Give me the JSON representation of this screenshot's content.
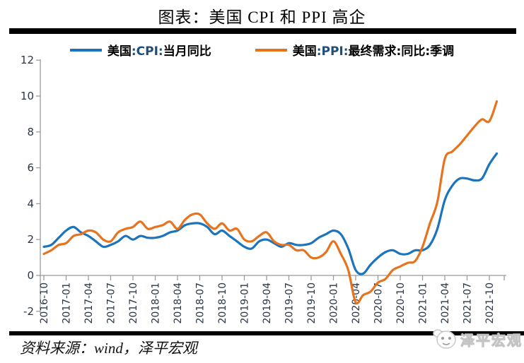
{
  "title": "图表：美国 CPI 和 PPI 高企",
  "legend": {
    "items": [
      {
        "pre": "美国",
        "code": ":CPI:",
        "post": "当月同比"
      },
      {
        "pre": "美国",
        "code": ":PPI:",
        "post": "最终需求:同比:季调"
      }
    ]
  },
  "footer": {
    "source": "资料来源：wind，泽平宏观",
    "watermark": "泽平宏观"
  },
  "chart_data": {
    "type": "line",
    "title": "图表：美国 CPI 和 PPI 高企",
    "x_start": "2016-10",
    "x_end": "2021-11",
    "months_per_tick": 3,
    "x_labels": [
      "2016-10",
      "2017-01",
      "2017-04",
      "2017-07",
      "2017-10",
      "2018-01",
      "2018-04",
      "2018-07",
      "2018-10",
      "2019-01",
      "2019-04",
      "2019-07",
      "2019-10",
      "2020-01",
      "2020-04",
      "2020-07",
      "2020-10",
      "2021-01",
      "2021-04",
      "2021-07",
      "2021-10"
    ],
    "ylim": [
      -2,
      12
    ],
    "yticks": [
      -2,
      0,
      2,
      4,
      6,
      8,
      10,
      12
    ],
    "grid": false,
    "legend_position": "top",
    "axis_color": "#9b9b9b",
    "tick_label_color": "#2b3648",
    "series": [
      {
        "name": "美国:CPI:当月同比",
        "color": "#1B74BC",
        "values": [
          1.6,
          1.7,
          2.1,
          2.5,
          2.7,
          2.4,
          2.2,
          1.9,
          1.6,
          1.7,
          1.9,
          2.2,
          2.0,
          2.2,
          2.1,
          2.1,
          2.2,
          2.4,
          2.5,
          2.8,
          2.9,
          2.9,
          2.7,
          2.3,
          2.5,
          2.2,
          1.9,
          1.6,
          1.5,
          1.9,
          2.0,
          1.8,
          1.6,
          1.8,
          1.7,
          1.7,
          1.8,
          2.1,
          2.3,
          2.5,
          2.3,
          1.5,
          0.3,
          0.1,
          0.6,
          1.0,
          1.3,
          1.4,
          1.2,
          1.2,
          1.4,
          1.4,
          1.7,
          2.6,
          4.2,
          5.0,
          5.4,
          5.4,
          5.3,
          5.4,
          6.2,
          6.8
        ]
      },
      {
        "name": "美国:PPI:最终需求:同比:季调",
        "color": "#E8731E",
        "values": [
          1.2,
          1.4,
          1.7,
          1.8,
          2.2,
          2.3,
          2.5,
          2.4,
          2.0,
          1.9,
          2.4,
          2.6,
          2.7,
          3.0,
          2.6,
          2.7,
          2.8,
          3.0,
          2.6,
          3.1,
          3.4,
          3.4,
          2.9,
          2.6,
          2.9,
          2.5,
          2.6,
          2.0,
          1.9,
          2.2,
          2.4,
          1.9,
          1.7,
          1.7,
          1.4,
          1.4,
          1.0,
          1.0,
          1.3,
          1.9,
          1.2,
          0.3,
          -1.5,
          -1.1,
          -0.9,
          -0.4,
          -0.2,
          0.3,
          0.5,
          0.7,
          0.8,
          1.6,
          2.9,
          4.1,
          6.5,
          6.9,
          7.3,
          7.8,
          8.3,
          8.7,
          8.6,
          9.7
        ]
      }
    ]
  }
}
